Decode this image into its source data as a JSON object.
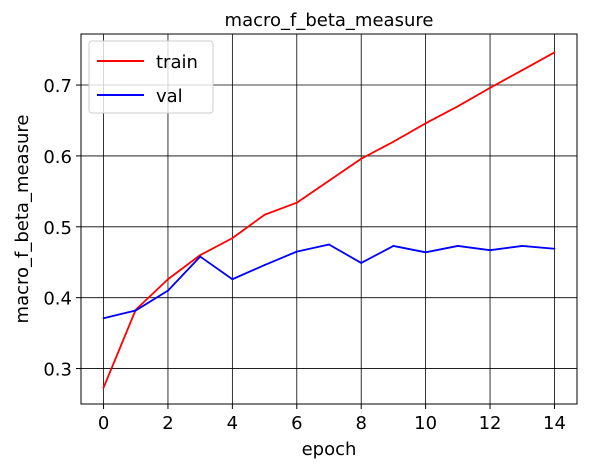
{
  "chart_data": {
    "type": "line",
    "title": "macro_f_beta_measure",
    "xlabel": "epoch",
    "ylabel": "macro_f_beta_measure",
    "x": [
      0,
      1,
      2,
      3,
      4,
      5,
      6,
      7,
      8,
      9,
      10,
      11,
      12,
      13,
      14
    ],
    "xlim": [
      -0.7,
      14.7
    ],
    "ylim": [
      0.25,
      0.772
    ],
    "xticks": [
      0,
      2,
      4,
      6,
      8,
      10,
      12,
      14
    ],
    "yticks": [
      0.3,
      0.4,
      0.5,
      0.6,
      0.7
    ],
    "xtick_labels": [
      "0",
      "2",
      "4",
      "6",
      "8",
      "10",
      "12",
      "14"
    ],
    "ytick_labels": [
      "0.3",
      "0.4",
      "0.5",
      "0.6",
      "0.7"
    ],
    "grid": true,
    "legend_position": "top-left",
    "series": [
      {
        "name": "train",
        "color": "#ff0000",
        "values": [
          0.273,
          0.383,
          0.426,
          0.46,
          0.484,
          0.517,
          0.534,
          0.565,
          0.596,
          0.62,
          0.646,
          0.67,
          0.696,
          0.721,
          0.746
        ]
      },
      {
        "name": "val",
        "color": "#0000ff",
        "values": [
          0.371,
          0.382,
          0.41,
          0.458,
          0.426,
          0.446,
          0.465,
          0.475,
          0.449,
          0.473,
          0.464,
          0.473,
          0.467,
          0.473,
          0.469
        ]
      }
    ]
  }
}
